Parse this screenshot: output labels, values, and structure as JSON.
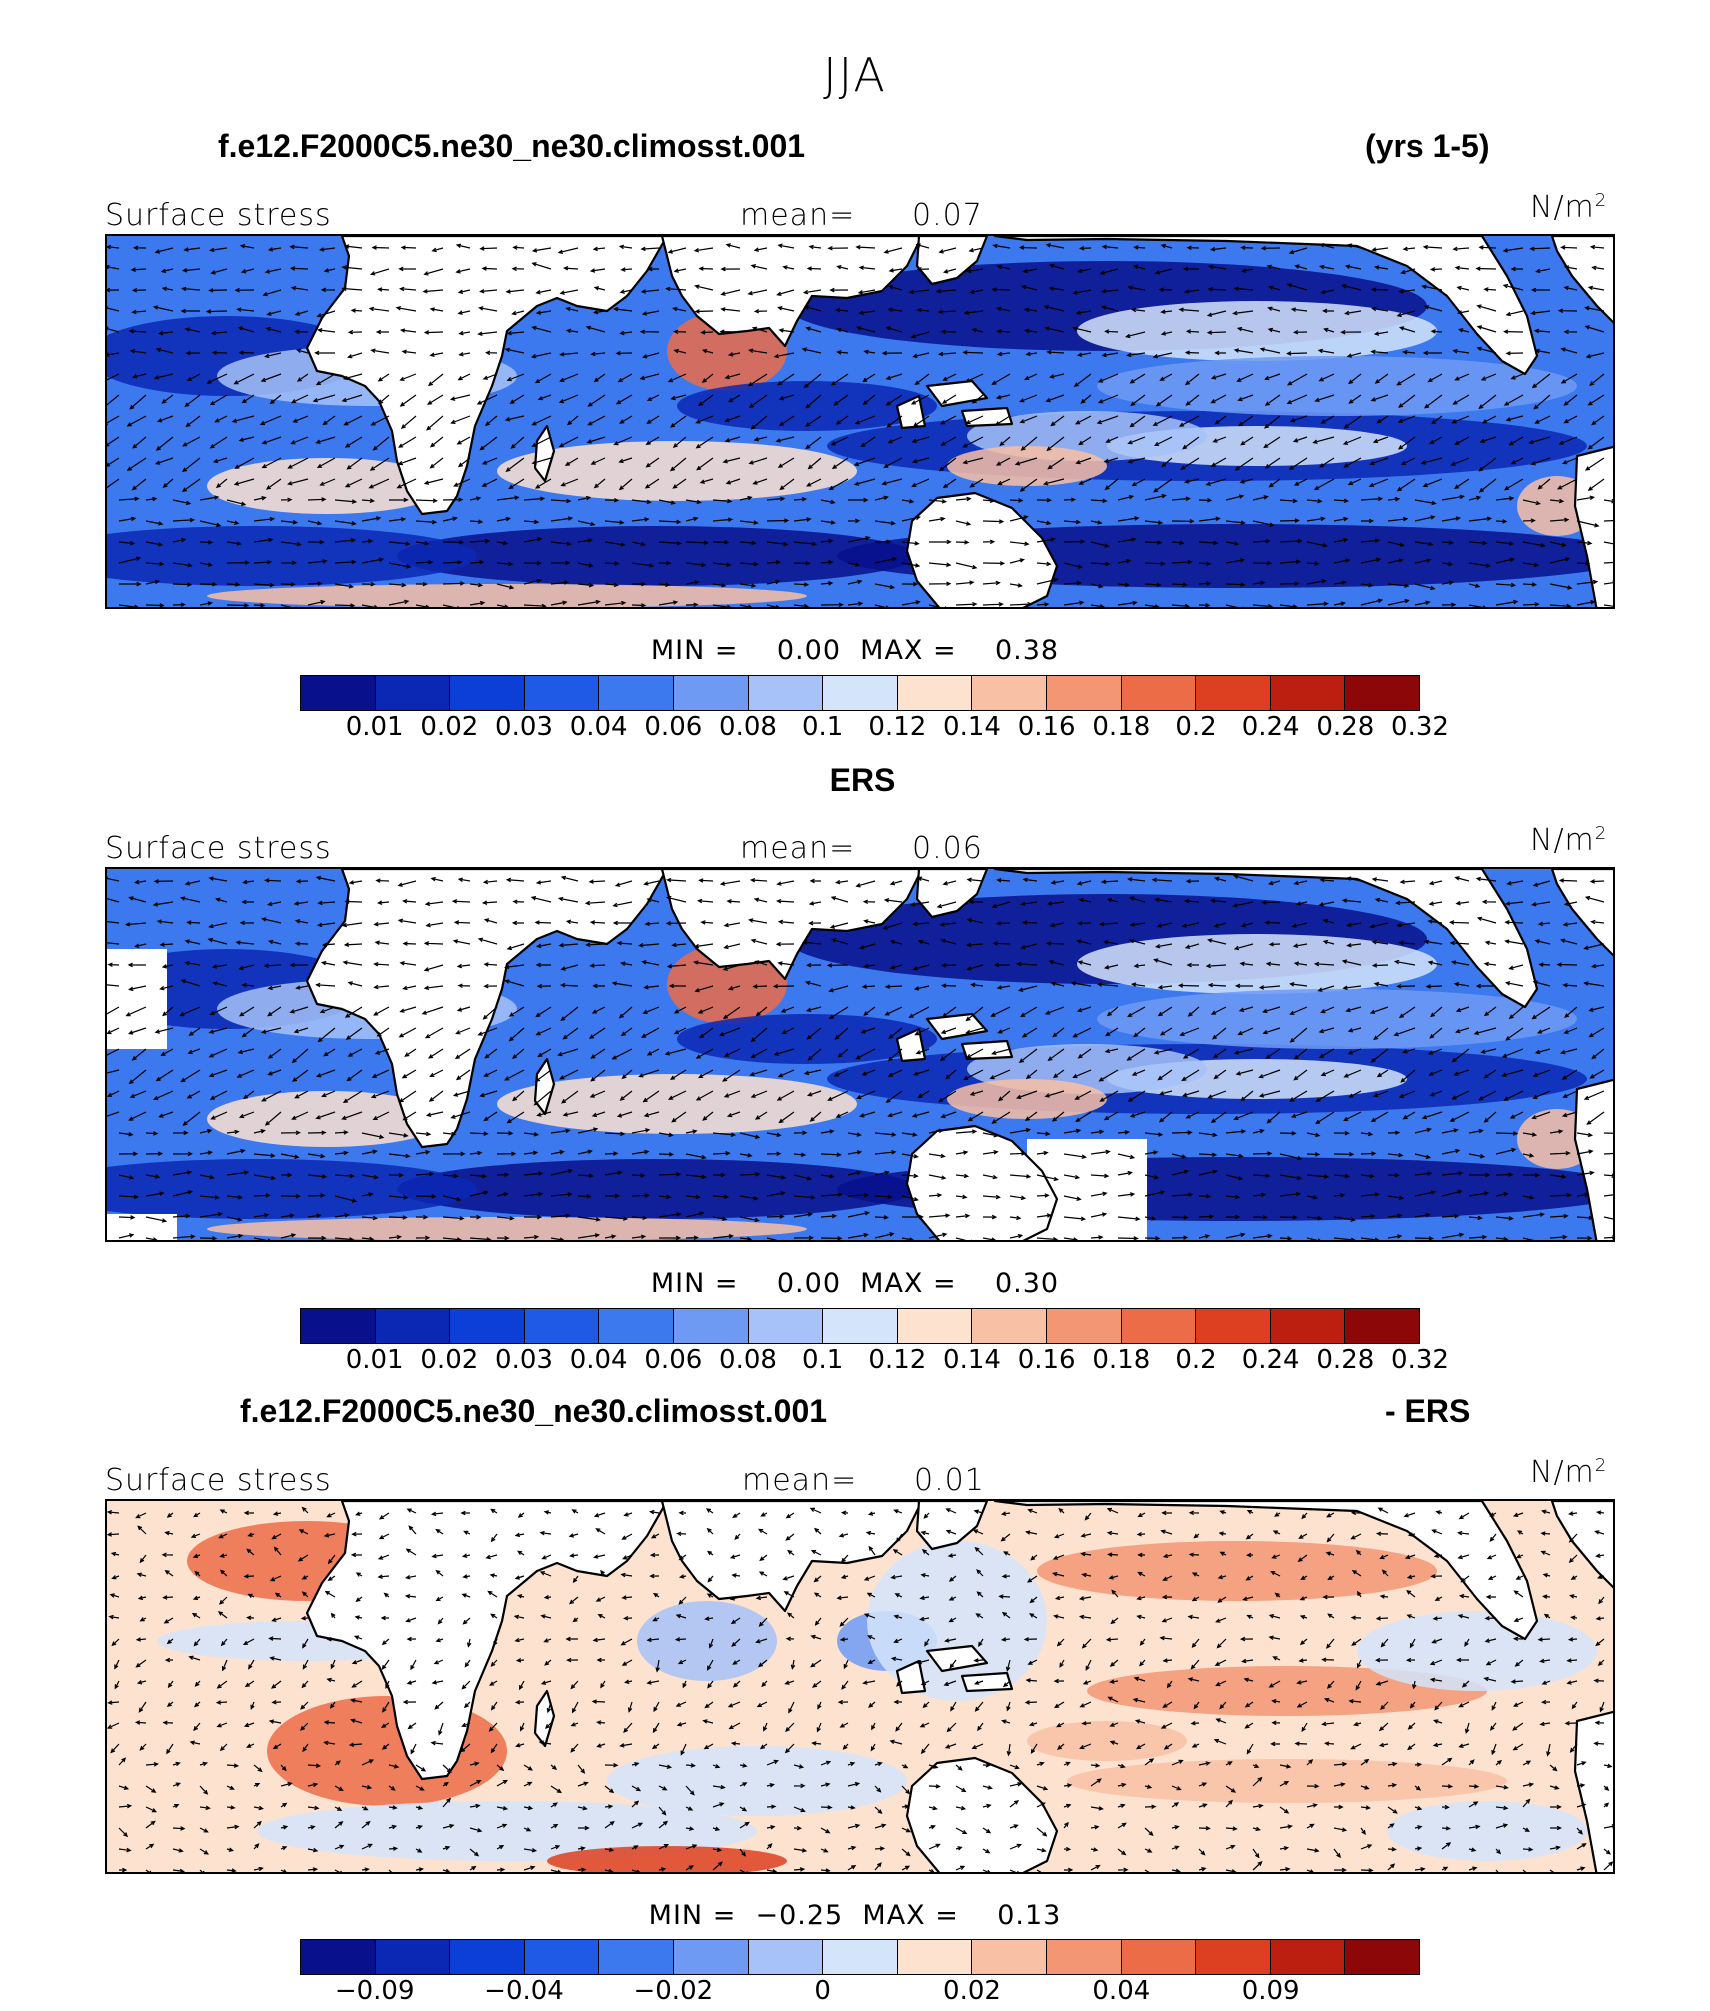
{
  "header": {
    "season": "JJA",
    "run_name": "f.e12.F2000C5.ne30_ne30.climosst.001",
    "years": "(yrs 1-5)"
  },
  "panels": [
    {
      "id": "model",
      "field_label": "Surface stress",
      "mean_label": "mean=",
      "mean_value": "0.07",
      "units": "N/m",
      "units_sup": "2",
      "minmax": "MIN =    0.00  MAX =    0.38",
      "colorbar_ticks": [
        "0.01",
        "0.02",
        "0.03",
        "0.04",
        "0.06",
        "0.08",
        "0.1",
        "0.12",
        "0.14",
        "0.16",
        "0.18",
        "0.2",
        "0.24",
        "0.28",
        "0.32"
      ]
    },
    {
      "id": "obs",
      "title": "ERS",
      "field_label": "Surface stress",
      "mean_label": "mean=",
      "mean_value": "0.06",
      "units": "N/m",
      "units_sup": "2",
      "minmax": "MIN =    0.00  MAX =    0.30",
      "colorbar_ticks": [
        "0.01",
        "0.02",
        "0.03",
        "0.04",
        "0.06",
        "0.08",
        "0.1",
        "0.12",
        "0.14",
        "0.16",
        "0.18",
        "0.2",
        "0.24",
        "0.28",
        "0.32"
      ]
    },
    {
      "id": "diff",
      "title_left": "f.e12.F2000C5.ne30_ne30.climosst.001",
      "title_right": "- ERS",
      "field_label": "Surface stress",
      "mean_label": "mean=",
      "mean_value": "0.01",
      "units": "N/m",
      "units_sup": "2",
      "minmax": "MIN =  −0.25  MAX =    0.13",
      "colorbar_ticks": [
        "−0.09",
        "−0.04",
        "−0.02",
        "0",
        "0.02",
        "0.04",
        "0.09"
      ]
    }
  ],
  "colors": {
    "scale": [
      "#08108c",
      "#0a28b4",
      "#0c3fd8",
      "#1e5ae6",
      "#3c78ee",
      "#6e9af4",
      "#a6c2f8",
      "#d4e4fa",
      "#fde2d0",
      "#f8c0a4",
      "#f29674",
      "#ec6c48",
      "#dc4020",
      "#bc1e10",
      "#8c0808"
    ],
    "land": "#ffffff",
    "coast": "#000000"
  }
}
